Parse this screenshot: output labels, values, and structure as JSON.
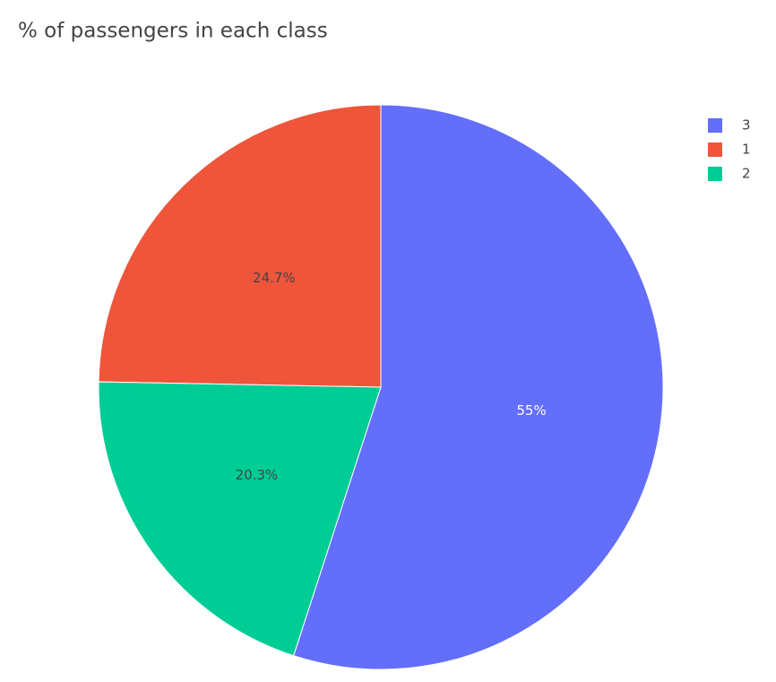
{
  "chart_data": {
    "type": "pie",
    "title": "% of passengers in each class",
    "categories": [
      "3",
      "1",
      "2"
    ],
    "values": [
      55,
      24.7,
      20.3
    ],
    "value_labels": [
      "55%",
      "24.7%",
      "20.3%"
    ],
    "colors": [
      "#636efa",
      "#EF553B",
      "#00cc96"
    ],
    "direction": "counterclockwise",
    "legend": "top-right"
  }
}
